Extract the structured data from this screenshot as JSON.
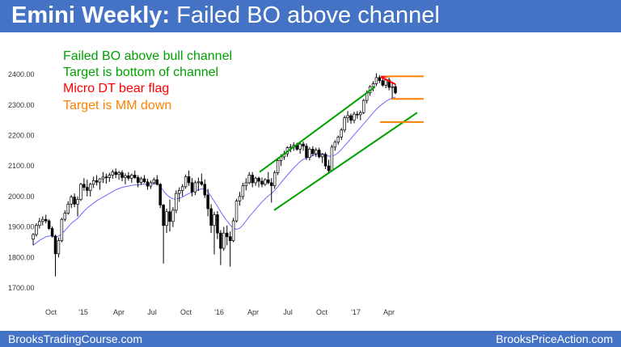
{
  "header": {
    "title_bold": "Emini Weekly:",
    "title_rest": "Failed BO above channel"
  },
  "annotations": [
    {
      "text": "Failed BO above bull channel",
      "color": "#00a000"
    },
    {
      "text": "Target is bottom of channel",
      "color": "#00a000"
    },
    {
      "text": "Micro DT bear flag",
      "color": "#ff0000"
    },
    {
      "text": "Target is MM down",
      "color": "#ff8000"
    }
  ],
  "footer": {
    "left": "BrooksTradingCourse.com",
    "right": "BrooksPriceAction.com"
  },
  "colors": {
    "brand_blue": "#4472c4",
    "bull_candle": "#ffffff",
    "bear_candle": "#000000",
    "moving_average": "#6b6bff",
    "channel": "#00a000",
    "micro_dt": "#ff0000",
    "mm_levels": "#ff8000"
  },
  "chart_data": {
    "type": "candlestick",
    "title": "",
    "ylim": [
      1700,
      2420
    ],
    "y_ticks": [
      "1700.00",
      "1800.00",
      "1900.00",
      "2000.00",
      "2100.00",
      "2200.00",
      "2300.00",
      "2400.00"
    ],
    "x_ticks": [
      "Oct",
      "'15",
      "Apr",
      "Jul",
      "Oct",
      "'16",
      "Apr",
      "Jul",
      "Oct",
      "'17",
      "Apr"
    ],
    "grid": false,
    "legend": "none",
    "candles": [
      [
        1860,
        1880,
        1840,
        1875
      ],
      [
        1875,
        1912,
        1868,
        1905
      ],
      [
        1905,
        1930,
        1895,
        1918
      ],
      [
        1918,
        1935,
        1905,
        1925
      ],
      [
        1925,
        1940,
        1912,
        1920
      ],
      [
        1920,
        1925,
        1890,
        1895
      ],
      [
        1895,
        1902,
        1865,
        1870
      ],
      [
        1870,
        1875,
        1738,
        1812
      ],
      [
        1812,
        1865,
        1800,
        1855
      ],
      [
        1855,
        1930,
        1850,
        1925
      ],
      [
        1925,
        1955,
        1918,
        1945
      ],
      [
        1945,
        1985,
        1940,
        1975
      ],
      [
        1975,
        2005,
        1962,
        1998
      ],
      [
        1998,
        2010,
        1965,
        1975
      ],
      [
        1975,
        2000,
        1935,
        1990
      ],
      [
        1990,
        2045,
        1985,
        2040
      ],
      [
        2040,
        2060,
        2018,
        2030
      ],
      [
        2030,
        2055,
        2000,
        2020
      ],
      [
        2020,
        2045,
        2000,
        2040
      ],
      [
        2040,
        2065,
        2028,
        2052
      ],
      [
        2052,
        2070,
        2036,
        2047
      ],
      [
        2047,
        2060,
        2022,
        2058
      ],
      [
        2058,
        2080,
        2044,
        2064
      ],
      [
        2064,
        2075,
        2042,
        2062
      ],
      [
        2062,
        2078,
        2048,
        2070
      ],
      [
        2070,
        2088,
        2058,
        2080
      ],
      [
        2080,
        2092,
        2060,
        2072
      ],
      [
        2072,
        2084,
        2055,
        2078
      ],
      [
        2078,
        2086,
        2050,
        2062
      ],
      [
        2062,
        2076,
        2040,
        2068
      ],
      [
        2068,
        2080,
        2052,
        2060
      ],
      [
        2060,
        2075,
        2045,
        2070
      ],
      [
        2070,
        2085,
        2058,
        2062
      ],
      [
        2062,
        2070,
        2030,
        2046
      ],
      [
        2046,
        2064,
        2038,
        2058
      ],
      [
        2058,
        2070,
        2044,
        2048
      ],
      [
        2048,
        2058,
        2022,
        2034
      ],
      [
        2034,
        2052,
        2025,
        2045
      ],
      [
        2045,
        2062,
        2040,
        2055
      ],
      [
        2055,
        2070,
        2036,
        2040
      ],
      [
        2040,
        2044,
        1962,
        1972
      ],
      [
        1972,
        1975,
        1780,
        1905
      ],
      [
        1905,
        1960,
        1880,
        1950
      ],
      [
        1950,
        1990,
        1885,
        1918
      ],
      [
        1918,
        1965,
        1900,
        1955
      ],
      [
        1955,
        2020,
        1945,
        2010
      ],
      [
        2010,
        2030,
        1982,
        2020
      ],
      [
        2020,
        2040,
        2000,
        2032
      ],
      [
        2032,
        2072,
        2025,
        2065
      ],
      [
        2065,
        2085,
        2035,
        2045
      ],
      [
        2045,
        2060,
        2000,
        2015
      ],
      [
        2015,
        2052,
        2005,
        2045
      ],
      [
        2045,
        2062,
        2018,
        2048
      ],
      [
        2048,
        2075,
        2035,
        2040
      ],
      [
        2040,
        2056,
        1995,
        2005
      ],
      [
        2005,
        2025,
        1935,
        1960
      ],
      [
        1960,
        1975,
        1880,
        1905
      ],
      [
        1905,
        1950,
        1810,
        1940
      ],
      [
        1940,
        1952,
        1860,
        1880
      ],
      [
        1880,
        1890,
        1775,
        1830
      ],
      [
        1830,
        1900,
        1822,
        1880
      ],
      [
        1880,
        1905,
        1840,
        1868
      ],
      [
        1868,
        1885,
        1770,
        1855
      ],
      [
        1855,
        1930,
        1850,
        1920
      ],
      [
        1920,
        1992,
        1915,
        1985
      ],
      [
        1985,
        2015,
        1970,
        2000
      ],
      [
        2000,
        2045,
        1990,
        2035
      ],
      [
        2035,
        2060,
        2020,
        2045
      ],
      [
        2045,
        2080,
        2040,
        2070
      ],
      [
        2070,
        2080,
        2030,
        2045
      ],
      [
        2045,
        2065,
        2035,
        2060
      ],
      [
        2060,
        2065,
        2030,
        2050
      ],
      [
        2050,
        2062,
        2030,
        2040
      ],
      [
        2040,
        2060,
        2035,
        2055
      ],
      [
        2055,
        2080,
        2040,
        2045
      ],
      [
        2045,
        2060,
        1980,
        2035
      ],
      [
        2035,
        2085,
        2025,
        2078
      ],
      [
        2078,
        2125,
        2070,
        2118
      ],
      [
        2118,
        2138,
        2100,
        2130
      ],
      [
        2130,
        2150,
        2120,
        2140
      ],
      [
        2140,
        2165,
        2130,
        2160
      ],
      [
        2160,
        2172,
        2145,
        2162
      ],
      [
        2162,
        2178,
        2150,
        2168
      ],
      [
        2168,
        2176,
        2150,
        2155
      ],
      [
        2155,
        2178,
        2140,
        2172
      ],
      [
        2172,
        2180,
        2150,
        2165
      ],
      [
        2165,
        2174,
        2120,
        2128
      ],
      [
        2128,
        2162,
        2118,
        2155
      ],
      [
        2155,
        2165,
        2132,
        2140
      ],
      [
        2140,
        2160,
        2130,
        2152
      ],
      [
        2152,
        2160,
        2125,
        2130
      ],
      [
        2130,
        2142,
        2110,
        2138
      ],
      [
        2138,
        2145,
        2090,
        2100
      ],
      [
        2100,
        2120,
        2075,
        2085
      ],
      [
        2085,
        2170,
        2082,
        2162
      ],
      [
        2162,
        2185,
        2150,
        2178
      ],
      [
        2178,
        2200,
        2170,
        2195
      ],
      [
        2195,
        2225,
        2185,
        2218
      ],
      [
        2218,
        2265,
        2210,
        2258
      ],
      [
        2258,
        2280,
        2242,
        2265
      ],
      [
        2265,
        2272,
        2238,
        2250
      ],
      [
        2250,
        2278,
        2240,
        2270
      ],
      [
        2270,
        2280,
        2255,
        2268
      ],
      [
        2268,
        2282,
        2250,
        2275
      ],
      [
        2275,
        2320,
        2270,
        2315
      ],
      [
        2315,
        2348,
        2305,
        2340
      ],
      [
        2340,
        2365,
        2330,
        2360
      ],
      [
        2360,
        2378,
        2345,
        2370
      ],
      [
        2370,
        2404,
        2362,
        2390
      ],
      [
        2390,
        2398,
        2372,
        2380
      ],
      [
        2380,
        2392,
        2360,
        2365
      ],
      [
        2365,
        2388,
        2355,
        2382
      ],
      [
        2382,
        2390,
        2348,
        2358
      ],
      [
        2358,
        2375,
        2320,
        2360
      ],
      [
        2360,
        2368,
        2335,
        2340
      ]
    ],
    "moving_average": [
      1840,
      1848,
      1856,
      1862,
      1868,
      1870,
      1870,
      1866,
      1870,
      1878,
      1888,
      1900,
      1912,
      1920,
      1928,
      1940,
      1952,
      1962,
      1970,
      1978,
      1986,
      1992,
      1998,
      2004,
      2010,
      2016,
      2022,
      2026,
      2030,
      2032,
      2034,
      2036,
      2038,
      2038,
      2040,
      2040,
      2040,
      2040,
      2042,
      2042,
      2034,
      2018,
      2006,
      1998,
      1992,
      1992,
      1994,
      1998,
      2004,
      2010,
      2014,
      2018,
      2022,
      2025,
      2024,
      2016,
      2000,
      1984,
      1968,
      1950,
      1934,
      1920,
      1906,
      1896,
      1892,
      1896,
      1906,
      1920,
      1934,
      1946,
      1958,
      1970,
      1982,
      1992,
      2002,
      2010,
      2020,
      2032,
      2045,
      2058,
      2070,
      2082,
      2094,
      2104,
      2114,
      2122,
      2126,
      2130,
      2134,
      2138,
      2140,
      2140,
      2138,
      2132,
      2132,
      2136,
      2144,
      2154,
      2166,
      2178,
      2190,
      2202,
      2214,
      2226,
      2238,
      2250,
      2262,
      2274,
      2286,
      2296,
      2304,
      2312,
      2318,
      2322,
      2326
    ],
    "channel_lines": [
      {
        "from": [
          "2016-04",
          2080
        ],
        "to": [
          "2017-03",
          2360
        ]
      },
      {
        "from": [
          "2016-06",
          1955
        ],
        "to": [
          "2017-04",
          2275
        ]
      }
    ],
    "channel_breakout_candle_marker": 2072,
    "mm_levels": [
      2394,
      2320,
      2244
    ]
  }
}
